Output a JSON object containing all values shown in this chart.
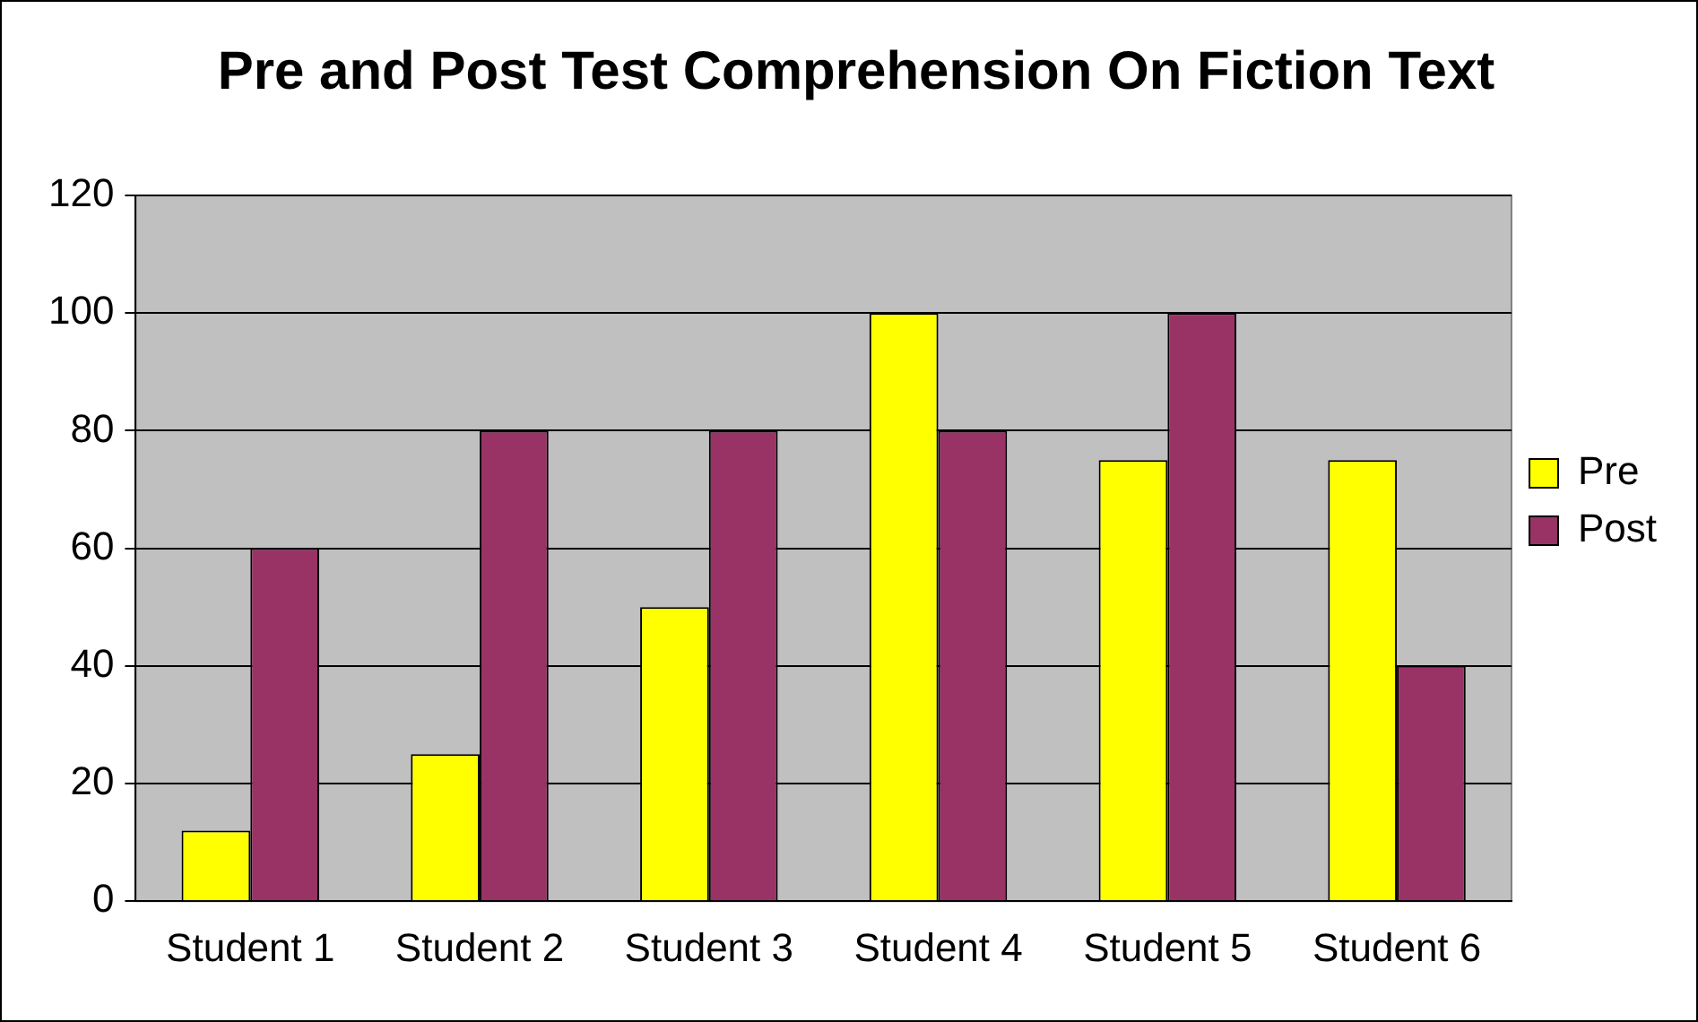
{
  "chart_data": {
    "type": "bar",
    "title": "Pre and Post Test Comprehension On Fiction Text",
    "categories": [
      "Student 1",
      "Student 2",
      "Student 3",
      "Student 4",
      "Student 5",
      "Student 6"
    ],
    "series": [
      {
        "name": "Pre",
        "color": "#ffff00",
        "values": [
          12,
          25,
          50,
          100,
          75,
          75
        ]
      },
      {
        "name": "Post",
        "color": "#993366",
        "values": [
          60,
          80,
          80,
          80,
          100,
          40
        ]
      }
    ],
    "ylim": [
      0,
      120
    ],
    "yticks": [
      0,
      20,
      40,
      60,
      80,
      100,
      120
    ],
    "grid": "y",
    "legend": "right"
  }
}
